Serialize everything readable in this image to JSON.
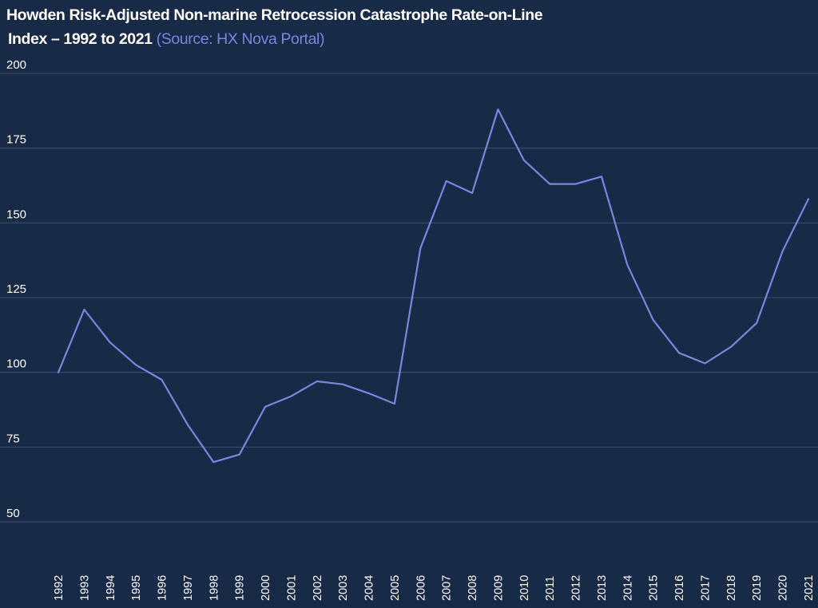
{
  "chart_data": {
    "type": "line",
    "title": "Howden Risk-Adjusted Non-marine Retrocession Catastrophe Rate-on-Line Index – 1992 to 2021",
    "subtitle": "(Source: HX Nova Portal)",
    "xlabel": "",
    "ylabel": "",
    "ylim": [
      50,
      200
    ],
    "yticks": [
      50,
      75,
      100,
      125,
      150,
      175,
      200
    ],
    "grid": true,
    "legend": null,
    "x": [
      "1992",
      "1993",
      "1994",
      "1995",
      "1996",
      "1997",
      "1998",
      "1999",
      "2000",
      "2001",
      "2002",
      "2003",
      "2004",
      "2005",
      "2006",
      "2007",
      "2008",
      "2009",
      "2010",
      "2011",
      "2012",
      "2013",
      "2014",
      "2015",
      "2016",
      "2017",
      "2018",
      "2019",
      "2020",
      "2021"
    ],
    "series": [
      {
        "name": "Rate-on-Line Index",
        "values": [
          100,
          121,
          110,
          102.5,
          97.5,
          82.5,
          70,
          72.5,
          88.5,
          92,
          97,
          96,
          93,
          89.5,
          141.5,
          164,
          160,
          188,
          171,
          163,
          163,
          165.5,
          136,
          117.5,
          106.5,
          103,
          108.5,
          116.5,
          140.5,
          158
        ],
        "color": "#7b86d9"
      }
    ]
  },
  "header": {
    "title_line1": "Howden Risk-Adjusted Non-marine Retrocession Catastrophe Rate-on-Line",
    "title_line2": "Index – 1992 to 2021",
    "source": "(Source: HX Nova Portal)"
  },
  "colors": {
    "background": "#172b46",
    "line": "#7b86d9",
    "grid": "#3a506b",
    "text": "#ffffff",
    "source_text": "#7b86d9"
  }
}
